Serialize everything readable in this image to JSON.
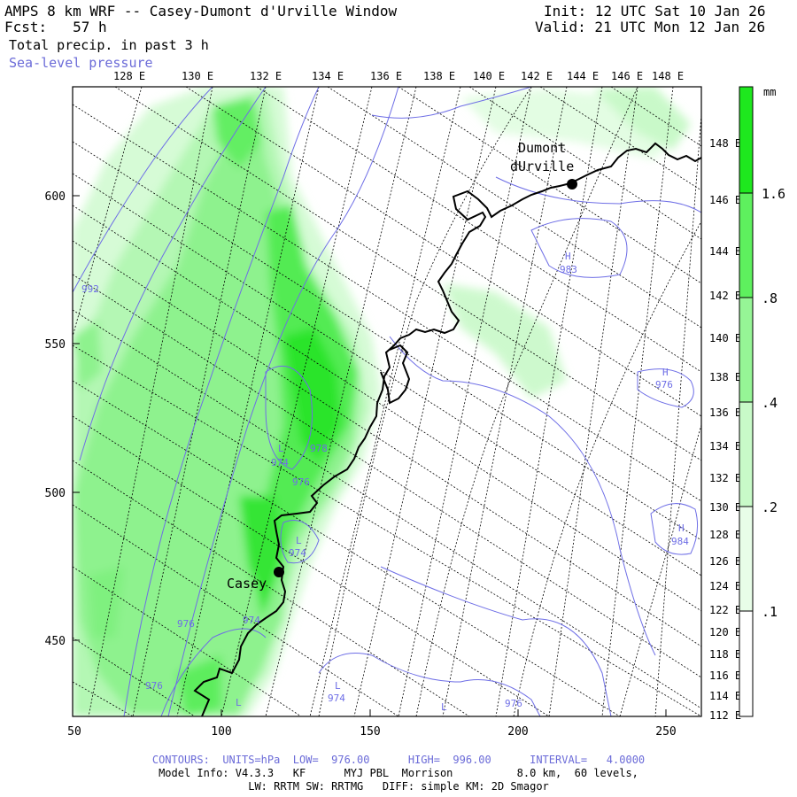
{
  "header": {
    "title": "AMPS 8 km WRF -- Casey-Dumont d'Urville Window",
    "fcst": "Fcst:   57 h",
    "field": "Total precip. in past 3 h",
    "overlay": "Sea-level pressure",
    "init": "Init: 12 UTC Sat 10 Jan 26",
    "valid": "Valid: 21 UTC Mon 12 Jan 26"
  },
  "map": {
    "top_lon_labels": [
      "128 E",
      "130 E",
      "132 E",
      "134 E",
      "136 E",
      "138 E",
      "140 E",
      "142 E",
      "144 E",
      "146 E",
      "148 E"
    ],
    "right_lon_labels": [
      "148 E",
      "146 E",
      "144 E",
      "142 E",
      "140 E",
      "138 E",
      "136 E",
      "134 E",
      "132 E",
      "130 E",
      "128 E",
      "126 E",
      "124 E",
      "122 E",
      "120 E",
      "118 E",
      "116 E",
      "114 E",
      "112 E"
    ],
    "x_ticks": [
      "50",
      "100",
      "150",
      "200",
      "250"
    ],
    "y_ticks": [
      "600",
      "550",
      "500",
      "450"
    ],
    "stations": [
      {
        "name": "Casey"
      },
      {
        "name_line1": "Dumont",
        "name_line2": "dUrville"
      }
    ],
    "pressure_labels": [
      "992",
      "983",
      "978",
      "974",
      "976",
      "974",
      "976",
      "974",
      "976",
      "976",
      "974",
      "976",
      "984"
    ],
    "pressure_centers": [
      "H",
      "L",
      "L",
      "L",
      "L",
      "L",
      "H"
    ]
  },
  "colorbar": {
    "unit": "mm",
    "labels": [
      "1.6",
      ".8",
      ".4",
      ".2",
      ".1"
    ],
    "colors": [
      "#1ee81e",
      "#5ef05e",
      "#96f596",
      "#c8fac8",
      "#e8fde8",
      "#ffffff"
    ]
  },
  "footer": {
    "contours": "CONTOURS:  UNITS=hPa  LOW=  976.00      HIGH=  996.00      INTERVAL=   4.0000",
    "model": "Model Info: V4.3.3   KF      MYJ PBL  Morrison          8.0 km,  60 levels,",
    "physics": "LW: RRTM SW: RRTMG   DIFF: simple KM: 2D Smagor"
  }
}
